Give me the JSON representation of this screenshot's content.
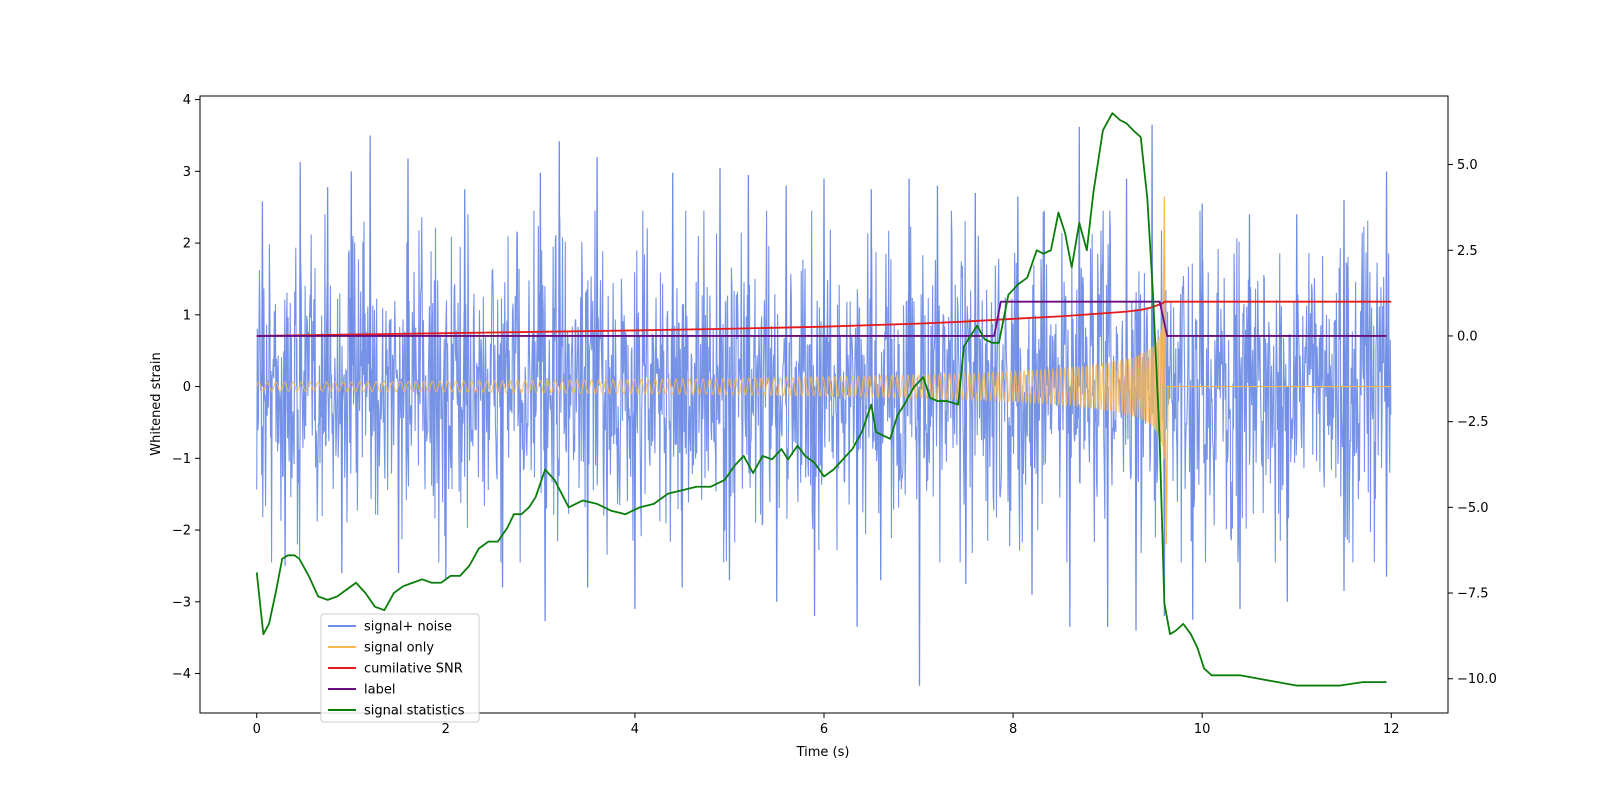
{
  "chart_data": {
    "type": "line",
    "xlabel": "Time (s)",
    "ylabel_left": "Whitened strain",
    "ylabel_right": "",
    "xlim": [
      -0.6,
      12.6
    ],
    "ylim_left": [
      -4.55,
      4.05
    ],
    "ylim_right": [
      -11.0,
      7.0
    ],
    "x_ticks": [
      0,
      2,
      4,
      6,
      8,
      10,
      12
    ],
    "x_tick_labels": [
      "0",
      "2",
      "4",
      "6",
      "8",
      "10",
      "12"
    ],
    "yl_ticks": [
      -4,
      -3,
      -2,
      -1,
      0,
      1,
      2,
      3,
      4
    ],
    "yl_tick_labels": [
      "−4",
      "−3",
      "−2",
      "−1",
      "0",
      "1",
      "2",
      "3",
      "4"
    ],
    "yr_ticks": [
      -10,
      -7.5,
      -5,
      -2.5,
      0,
      2.5,
      5
    ],
    "yr_tick_labels": [
      "−10.0",
      "−7.5",
      "−5.0",
      "−2.5",
      "0.0",
      "2.5",
      "5.0"
    ],
    "grid": false,
    "legend_position": "lower-left",
    "series": [
      {
        "name": "signal+ noise",
        "color": "#6f8de6",
        "axis": "left",
        "render": "noise_envelope",
        "x_range": [
          0,
          12
        ],
        "typical_band": [
          -1.8,
          1.8
        ],
        "spikes": [
          [
            0.06,
            2.58
          ],
          [
            0.46,
            3.13
          ],
          [
            0.75,
            2.78
          ],
          [
            1.0,
            3.0
          ],
          [
            1.2,
            3.5
          ],
          [
            1.6,
            3.18
          ],
          [
            2.2,
            2.75
          ],
          [
            3.0,
            2.98
          ],
          [
            3.2,
            3.42
          ],
          [
            3.6,
            3.2
          ],
          [
            4.4,
            2.98
          ],
          [
            4.9,
            3.05
          ],
          [
            5.2,
            2.95
          ],
          [
            5.6,
            2.8
          ],
          [
            6.0,
            2.9
          ],
          [
            6.5,
            2.75
          ],
          [
            6.9,
            2.9
          ],
          [
            7.2,
            2.8
          ],
          [
            7.6,
            2.7
          ],
          [
            8.05,
            2.65
          ],
          [
            8.7,
            3.62
          ],
          [
            9.2,
            2.9
          ],
          [
            9.47,
            3.65
          ],
          [
            10.0,
            2.55
          ],
          [
            10.5,
            2.4
          ],
          [
            11.0,
            2.4
          ],
          [
            11.5,
            2.6
          ],
          [
            11.95,
            3.0
          ],
          [
            0.3,
            -2.5
          ],
          [
            0.9,
            -2.6
          ],
          [
            1.5,
            -2.6
          ],
          [
            2.0,
            -2.7
          ],
          [
            2.6,
            -2.8
          ],
          [
            3.05,
            -3.27
          ],
          [
            3.5,
            -2.8
          ],
          [
            4.0,
            -3.1
          ],
          [
            4.5,
            -2.8
          ],
          [
            5.0,
            -2.7
          ],
          [
            5.5,
            -3.0
          ],
          [
            5.9,
            -3.2
          ],
          [
            6.35,
            -3.35
          ],
          [
            6.6,
            -2.7
          ],
          [
            7.01,
            -4.17
          ],
          [
            7.5,
            -2.75
          ],
          [
            8.2,
            -2.9
          ],
          [
            8.6,
            -3.35
          ],
          [
            9.0,
            -3.35
          ],
          [
            9.3,
            -3.4
          ],
          [
            9.6,
            -3.2
          ],
          [
            9.9,
            -3.25
          ],
          [
            10.4,
            -3.1
          ],
          [
            10.9,
            -3.0
          ],
          [
            11.5,
            -2.85
          ],
          [
            11.95,
            -2.65
          ]
        ]
      },
      {
        "name": "signal only",
        "color": "#ffb84d",
        "axis": "left",
        "render": "chirp",
        "x_range": [
          0,
          9.6
        ],
        "amplitude_start": 0.06,
        "amplitude_at_merger": 1.05,
        "merger_time": 9.6,
        "f_start_hz": 11,
        "f_merger_hz": 250,
        "post_merger_value": 0.0,
        "post_merger_range": [
          9.6,
          12
        ]
      },
      {
        "name": "cumilative SNR",
        "color": "#e41a1c",
        "axis": "right",
        "x": [
          0,
          1,
          2,
          3,
          4,
          5,
          6,
          7,
          7.5,
          8,
          8.5,
          8.8,
          9.0,
          9.2,
          9.35,
          9.45,
          9.52,
          9.58,
          9.6,
          12.0
        ],
        "y": [
          0.0,
          0.04,
          0.08,
          0.12,
          0.16,
          0.21,
          0.27,
          0.36,
          0.42,
          0.5,
          0.57,
          0.63,
          0.67,
          0.71,
          0.76,
          0.82,
          0.89,
          0.95,
          1.0,
          1.0
        ]
      },
      {
        "name": "label",
        "color": "#6a0d7e",
        "axis": "right",
        "x": [
          0,
          7.8,
          7.87,
          9.55,
          9.63,
          11.95
        ],
        "y": [
          0,
          0,
          1,
          1,
          0,
          0
        ]
      },
      {
        "name": "signal statistics",
        "color": "#0a7d0a",
        "axis": "right",
        "x": [
          0.0,
          0.07,
          0.13,
          0.2,
          0.27,
          0.33,
          0.4,
          0.45,
          0.55,
          0.65,
          0.75,
          0.85,
          0.95,
          1.05,
          1.15,
          1.25,
          1.35,
          1.45,
          1.55,
          1.65,
          1.75,
          1.85,
          1.95,
          2.05,
          2.15,
          2.25,
          2.35,
          2.45,
          2.55,
          2.65,
          2.72,
          2.8,
          2.88,
          2.95,
          3.05,
          3.15,
          3.3,
          3.45,
          3.6,
          3.75,
          3.9,
          4.05,
          4.2,
          4.35,
          4.5,
          4.65,
          4.8,
          4.95,
          5.05,
          5.15,
          5.25,
          5.35,
          5.45,
          5.55,
          5.62,
          5.72,
          5.8,
          5.9,
          6.0,
          6.1,
          6.2,
          6.3,
          6.4,
          6.5,
          6.55,
          6.62,
          6.7,
          6.78,
          6.85,
          6.95,
          7.05,
          7.12,
          7.2,
          7.3,
          7.42,
          7.48,
          7.55,
          7.62,
          7.7,
          7.78,
          7.85,
          7.95,
          8.05,
          8.15,
          8.25,
          8.32,
          8.4,
          8.48,
          8.55,
          8.62,
          8.7,
          8.78,
          8.85,
          8.95,
          9.05,
          9.13,
          9.2,
          9.27,
          9.35,
          9.42,
          9.48,
          9.55,
          9.6,
          9.66,
          9.72,
          9.8,
          9.88,
          9.95,
          10.02,
          10.1,
          10.2,
          10.4,
          10.6,
          10.8,
          11.0,
          11.2,
          11.45,
          11.7,
          11.95
        ],
        "y": [
          -6.9,
          -8.7,
          -8.4,
          -7.5,
          -6.5,
          -6.4,
          -6.4,
          -6.5,
          -7.0,
          -7.6,
          -7.7,
          -7.6,
          -7.4,
          -7.2,
          -7.5,
          -7.9,
          -8.0,
          -7.5,
          -7.3,
          -7.2,
          -7.1,
          -7.2,
          -7.2,
          -7.0,
          -7.0,
          -6.7,
          -6.2,
          -6.0,
          -6.0,
          -5.6,
          -5.2,
          -5.2,
          -5.0,
          -4.7,
          -3.9,
          -4.2,
          -5.0,
          -4.8,
          -4.9,
          -5.1,
          -5.2,
          -5.0,
          -4.9,
          -4.6,
          -4.5,
          -4.4,
          -4.4,
          -4.2,
          -3.8,
          -3.5,
          -4.0,
          -3.5,
          -3.6,
          -3.3,
          -3.6,
          -3.2,
          -3.5,
          -3.7,
          -4.1,
          -3.9,
          -3.6,
          -3.3,
          -2.8,
          -2.0,
          -2.8,
          -2.9,
          -3.0,
          -2.3,
          -2.0,
          -1.5,
          -1.2,
          -1.8,
          -1.9,
          -1.9,
          -2.0,
          -0.3,
          0.0,
          0.3,
          -0.1,
          -0.2,
          -0.2,
          1.2,
          1.5,
          1.7,
          2.5,
          2.4,
          2.5,
          3.6,
          3.0,
          2.0,
          3.3,
          2.5,
          4.2,
          6.0,
          6.5,
          6.3,
          6.2,
          6.0,
          5.8,
          4.0,
          1.2,
          -3.0,
          -7.8,
          -8.7,
          -8.6,
          -8.4,
          -8.7,
          -9.1,
          -9.7,
          -9.9,
          -9.9,
          -9.9,
          -10.0,
          -10.1,
          -10.2,
          -10.2,
          -10.2,
          -10.1,
          -10.1
        ]
      }
    ]
  }
}
